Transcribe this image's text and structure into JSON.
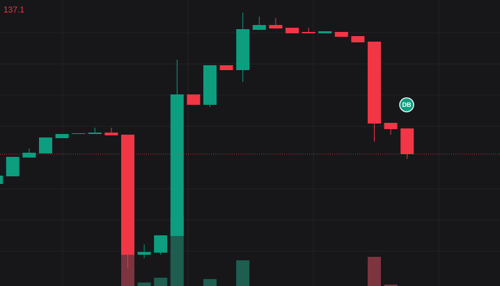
{
  "price_label": "137.1",
  "badge": "DB",
  "chart_data": {
    "type": "candlestick",
    "up_color": "#0d9d7f",
    "down_color": "#f23645",
    "volume_up_color": "#1e6b5c",
    "volume_down_color": "#8e3a46",
    "ylim": [
      0,
      412
    ],
    "open": [
      147,
      158,
      185,
      191,
      213,
      219,
      219,
      221,
      218,
      45,
      48,
      72,
      276,
      261,
      318,
      311,
      369,
      376,
      372,
      366,
      364,
      366,
      360,
      352,
      235,
      227
    ],
    "high": [
      159,
      186,
      198,
      214,
      219,
      220,
      228,
      228,
      218,
      60,
      73,
      326,
      276,
      318,
      318,
      394,
      388,
      386,
      372,
      372,
      367,
      366,
      360,
      352,
      235,
      227
    ],
    "low": [
      147,
      158,
      185,
      191,
      213,
      219,
      219,
      217,
      26,
      40,
      45,
      72,
      261,
      258,
      311,
      294,
      369,
      371,
      364,
      364,
      364,
      359,
      351,
      208,
      218,
      183
    ],
    "close": [
      159,
      186,
      192,
      214,
      219,
      220,
      221,
      217,
      45,
      49,
      73,
      276,
      261,
      318,
      311,
      370,
      376,
      371,
      364,
      364,
      367,
      359,
      351,
      234,
      226,
      190
    ],
    "volume": [
      null,
      null,
      null,
      null,
      null,
      null,
      null,
      null,
      78,
      5,
      12,
      100,
      null,
      10,
      null,
      37,
      null,
      null,
      null,
      null,
      null,
      null,
      null,
      42,
      2,
      null
    ]
  }
}
